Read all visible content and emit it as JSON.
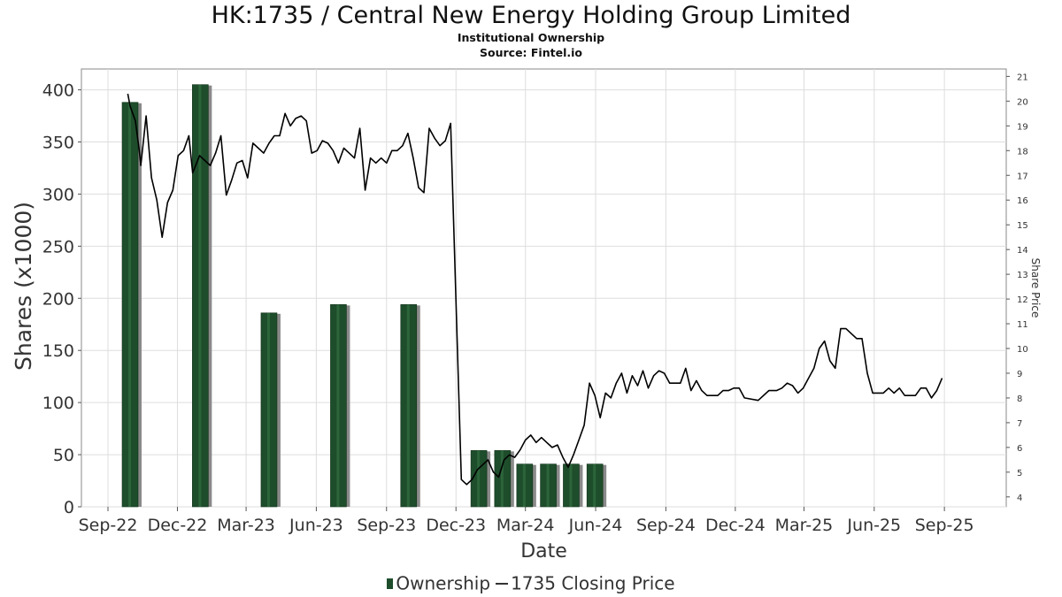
{
  "chart_data": {
    "type": "bar+line",
    "title": "HK:1735 / Central New Energy Holding Group Limited",
    "subtitle": "Institutional Ownership",
    "source": "Source: Fintel.io",
    "xlabel": "Date",
    "ylabel": "Shares (x1000)",
    "y2label": "Share Price",
    "ylim": [
      0,
      420
    ],
    "y2lim": [
      3.6,
      21.3
    ],
    "x_ticks": [
      "Sep-22",
      "Dec-22",
      "Mar-23",
      "Jun-23",
      "Sep-23",
      "Dec-23",
      "Mar-24",
      "Jun-24",
      "Sep-24",
      "Dec-24",
      "Mar-25",
      "Jun-25",
      "Sep-25"
    ],
    "y_ticks": [
      0,
      50,
      100,
      150,
      200,
      250,
      300,
      350,
      400
    ],
    "y2_ticks": [
      4,
      5,
      6,
      7,
      8,
      9,
      10,
      11,
      12,
      13,
      14,
      15,
      16,
      17,
      18,
      19,
      20,
      21
    ],
    "grid": true,
    "legend_position": "bottom",
    "series": [
      {
        "name": "Ownership",
        "type": "bar",
        "color": "#1e4d2b",
        "axis": "left",
        "data": [
          {
            "date": "2022-09-30",
            "value": 388
          },
          {
            "date": "2022-12-31",
            "value": 405
          },
          {
            "date": "2023-03-31",
            "value": 186
          },
          {
            "date": "2023-06-30",
            "value": 194
          },
          {
            "date": "2023-09-30",
            "value": 194
          },
          {
            "date": "2023-12-31",
            "value": 54
          },
          {
            "date": "2024-01-31",
            "value": 54
          },
          {
            "date": "2024-02-29",
            "value": 41
          },
          {
            "date": "2024-03-31",
            "value": 41
          },
          {
            "date": "2024-04-30",
            "value": 41
          },
          {
            "date": "2024-05-31",
            "value": 41
          }
        ]
      },
      {
        "name": "1735 Closing Price",
        "type": "line",
        "color": "#000000",
        "axis": "right",
        "data": [
          {
            "date": "2022-09-27",
            "value": 20.3
          },
          {
            "date": "2022-09-30",
            "value": 19.8
          },
          {
            "date": "2022-10-07",
            "value": 19.2
          },
          {
            "date": "2022-10-12",
            "value": 18.0
          },
          {
            "date": "2022-10-14",
            "value": 17.4
          },
          {
            "date": "2022-10-21",
            "value": 19.4
          },
          {
            "date": "2022-10-28",
            "value": 16.9
          },
          {
            "date": "2022-11-04",
            "value": 16.0
          },
          {
            "date": "2022-11-11",
            "value": 14.5
          },
          {
            "date": "2022-11-18",
            "value": 15.9
          },
          {
            "date": "2022-11-25",
            "value": 16.4
          },
          {
            "date": "2022-12-02",
            "value": 17.8
          },
          {
            "date": "2022-12-09",
            "value": 18.0
          },
          {
            "date": "2022-12-16",
            "value": 18.6
          },
          {
            "date": "2022-12-21",
            "value": 17.1
          },
          {
            "date": "2022-12-30",
            "value": 17.8
          },
          {
            "date": "2023-01-06",
            "value": 17.6
          },
          {
            "date": "2023-01-13",
            "value": 17.4
          },
          {
            "date": "2023-01-20",
            "value": 17.9
          },
          {
            "date": "2023-01-27",
            "value": 18.6
          },
          {
            "date": "2023-02-03",
            "value": 16.2
          },
          {
            "date": "2023-02-10",
            "value": 16.8
          },
          {
            "date": "2023-02-17",
            "value": 17.5
          },
          {
            "date": "2023-02-24",
            "value": 17.6
          },
          {
            "date": "2023-03-03",
            "value": 16.9
          },
          {
            "date": "2023-03-10",
            "value": 18.3
          },
          {
            "date": "2023-03-17",
            "value": 18.1
          },
          {
            "date": "2023-03-24",
            "value": 17.9
          },
          {
            "date": "2023-03-31",
            "value": 18.3
          },
          {
            "date": "2023-04-07",
            "value": 18.6
          },
          {
            "date": "2023-04-14",
            "value": 18.6
          },
          {
            "date": "2023-04-21",
            "value": 19.5
          },
          {
            "date": "2023-04-28",
            "value": 19.0
          },
          {
            "date": "2023-05-05",
            "value": 19.3
          },
          {
            "date": "2023-05-12",
            "value": 19.4
          },
          {
            "date": "2023-05-19",
            "value": 19.2
          },
          {
            "date": "2023-05-26",
            "value": 17.9
          },
          {
            "date": "2023-06-02",
            "value": 18.0
          },
          {
            "date": "2023-06-09",
            "value": 18.4
          },
          {
            "date": "2023-06-16",
            "value": 18.3
          },
          {
            "date": "2023-06-23",
            "value": 18.0
          },
          {
            "date": "2023-06-30",
            "value": 17.5
          },
          {
            "date": "2023-07-07",
            "value": 18.1
          },
          {
            "date": "2023-07-14",
            "value": 17.9
          },
          {
            "date": "2023-07-21",
            "value": 17.7
          },
          {
            "date": "2023-07-28",
            "value": 18.9
          },
          {
            "date": "2023-08-04",
            "value": 16.4
          },
          {
            "date": "2023-08-11",
            "value": 17.7
          },
          {
            "date": "2023-08-18",
            "value": 17.5
          },
          {
            "date": "2023-08-25",
            "value": 17.7
          },
          {
            "date": "2023-09-01",
            "value": 17.5
          },
          {
            "date": "2023-09-08",
            "value": 18.0
          },
          {
            "date": "2023-09-15",
            "value": 18.0
          },
          {
            "date": "2023-09-22",
            "value": 18.2
          },
          {
            "date": "2023-09-29",
            "value": 18.7
          },
          {
            "date": "2023-10-06",
            "value": 17.7
          },
          {
            "date": "2023-10-13",
            "value": 16.5
          },
          {
            "date": "2023-10-20",
            "value": 16.3
          },
          {
            "date": "2023-10-27",
            "value": 18.9
          },
          {
            "date": "2023-11-03",
            "value": 18.5
          },
          {
            "date": "2023-11-10",
            "value": 18.2
          },
          {
            "date": "2023-11-17",
            "value": 18.4
          },
          {
            "date": "2023-11-24",
            "value": 19.1
          },
          {
            "date": "2023-12-08",
            "value": 4.7
          },
          {
            "date": "2023-12-15",
            "value": 4.5
          },
          {
            "date": "2023-12-22",
            "value": 4.7
          },
          {
            "date": "2023-12-29",
            "value": 5.1
          },
          {
            "date": "2024-01-12",
            "value": 5.5
          },
          {
            "date": "2024-01-19",
            "value": 5.0
          },
          {
            "date": "2024-01-26",
            "value": 4.8
          },
          {
            "date": "2024-02-02",
            "value": 5.5
          },
          {
            "date": "2024-02-09",
            "value": 5.7
          },
          {
            "date": "2024-02-16",
            "value": 5.6
          },
          {
            "date": "2024-02-23",
            "value": 5.9
          },
          {
            "date": "2024-03-01",
            "value": 6.3
          },
          {
            "date": "2024-03-08",
            "value": 6.5
          },
          {
            "date": "2024-03-15",
            "value": 6.2
          },
          {
            "date": "2024-03-22",
            "value": 6.4
          },
          {
            "date": "2024-03-29",
            "value": 6.2
          },
          {
            "date": "2024-04-05",
            "value": 6.0
          },
          {
            "date": "2024-04-12",
            "value": 6.1
          },
          {
            "date": "2024-04-19",
            "value": 5.6
          },
          {
            "date": "2024-04-26",
            "value": 5.2
          },
          {
            "date": "2024-05-03",
            "value": 5.7
          },
          {
            "date": "2024-05-10",
            "value": 6.3
          },
          {
            "date": "2024-05-17",
            "value": 6.9
          },
          {
            "date": "2024-05-24",
            "value": 8.6
          },
          {
            "date": "2024-05-31",
            "value": 8.1
          },
          {
            "date": "2024-06-07",
            "value": 7.2
          },
          {
            "date": "2024-06-14",
            "value": 8.2
          },
          {
            "date": "2024-06-21",
            "value": 8.0
          },
          {
            "date": "2024-06-28",
            "value": 8.6
          },
          {
            "date": "2024-07-05",
            "value": 9.0
          },
          {
            "date": "2024-07-12",
            "value": 8.2
          },
          {
            "date": "2024-07-19",
            "value": 8.9
          },
          {
            "date": "2024-07-26",
            "value": 8.5
          },
          {
            "date": "2024-08-02",
            "value": 9.1
          },
          {
            "date": "2024-08-09",
            "value": 8.4
          },
          {
            "date": "2024-08-16",
            "value": 8.9
          },
          {
            "date": "2024-08-23",
            "value": 9.1
          },
          {
            "date": "2024-08-30",
            "value": 9.0
          },
          {
            "date": "2024-09-06",
            "value": 8.6
          },
          {
            "date": "2024-09-13",
            "value": 8.6
          },
          {
            "date": "2024-09-20",
            "value": 8.6
          },
          {
            "date": "2024-09-27",
            "value": 9.2
          },
          {
            "date": "2024-10-04",
            "value": 8.3
          },
          {
            "date": "2024-10-11",
            "value": 8.7
          },
          {
            "date": "2024-10-18",
            "value": 8.3
          },
          {
            "date": "2024-10-25",
            "value": 8.1
          },
          {
            "date": "2024-11-01",
            "value": 8.1
          },
          {
            "date": "2024-11-08",
            "value": 8.1
          },
          {
            "date": "2024-11-15",
            "value": 8.3
          },
          {
            "date": "2024-11-22",
            "value": 8.3
          },
          {
            "date": "2024-11-29",
            "value": 8.4
          },
          {
            "date": "2024-12-06",
            "value": 8.4
          },
          {
            "date": "2024-12-13",
            "value": 8.0
          },
          {
            "date": "2024-12-31",
            "value": 7.9
          },
          {
            "date": "2025-01-14",
            "value": 8.3
          },
          {
            "date": "2025-01-24",
            "value": 8.3
          },
          {
            "date": "2025-01-31",
            "value": 8.4
          },
          {
            "date": "2025-02-07",
            "value": 8.6
          },
          {
            "date": "2025-02-14",
            "value": 8.5
          },
          {
            "date": "2025-02-21",
            "value": 8.2
          },
          {
            "date": "2025-02-28",
            "value": 8.4
          },
          {
            "date": "2025-03-07",
            "value": 8.8
          },
          {
            "date": "2025-03-14",
            "value": 9.2
          },
          {
            "date": "2025-03-21",
            "value": 10.0
          },
          {
            "date": "2025-03-28",
            "value": 10.3
          },
          {
            "date": "2025-04-04",
            "value": 9.5
          },
          {
            "date": "2025-04-11",
            "value": 9.2
          },
          {
            "date": "2025-04-18",
            "value": 10.8
          },
          {
            "date": "2025-04-25",
            "value": 10.8
          },
          {
            "date": "2025-05-02",
            "value": 10.6
          },
          {
            "date": "2025-05-09",
            "value": 10.4
          },
          {
            "date": "2025-05-16",
            "value": 10.4
          },
          {
            "date": "2025-05-23",
            "value": 9.0
          },
          {
            "date": "2025-05-30",
            "value": 8.2
          },
          {
            "date": "2025-06-06",
            "value": 8.2
          },
          {
            "date": "2025-06-13",
            "value": 8.2
          },
          {
            "date": "2025-06-20",
            "value": 8.4
          },
          {
            "date": "2025-06-27",
            "value": 8.2
          },
          {
            "date": "2025-07-04",
            "value": 8.4
          },
          {
            "date": "2025-07-11",
            "value": 8.1
          },
          {
            "date": "2025-07-18",
            "value": 8.1
          },
          {
            "date": "2025-07-25",
            "value": 8.1
          },
          {
            "date": "2025-08-01",
            "value": 8.4
          },
          {
            "date": "2025-08-08",
            "value": 8.4
          },
          {
            "date": "2025-08-15",
            "value": 8.0
          },
          {
            "date": "2025-08-22",
            "value": 8.3
          },
          {
            "date": "2025-08-29",
            "value": 8.8
          }
        ]
      }
    ]
  }
}
